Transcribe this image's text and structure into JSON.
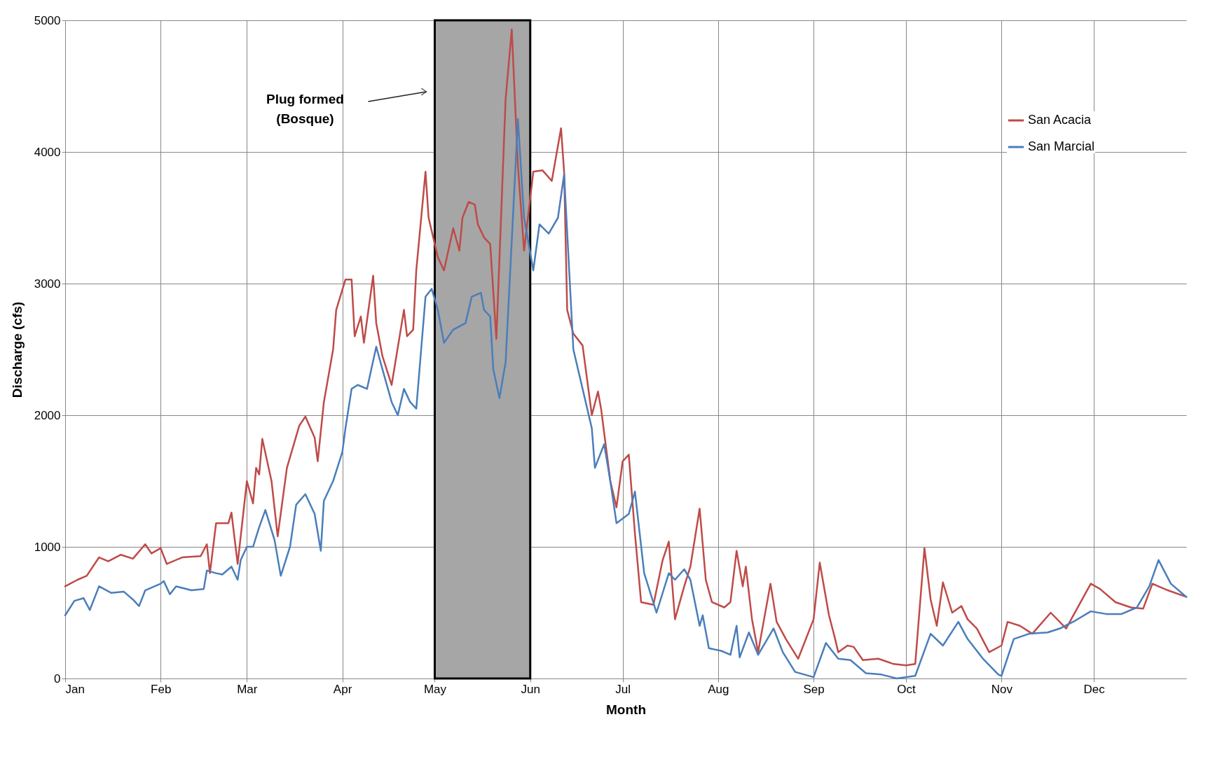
{
  "chart_data": {
    "type": "line",
    "xlabel": "Month",
    "ylabel": "Discharge (cfs)",
    "xlim": [
      "--01-01",
      "--12-31"
    ],
    "xticks": [
      {
        "value": "--01-01",
        "label": "Jan"
      },
      {
        "value": "--02-01",
        "label": "Feb"
      },
      {
        "value": "--03-01",
        "label": "Mar"
      },
      {
        "value": "--04-01",
        "label": "Apr"
      },
      {
        "value": "--05-01",
        "label": "May"
      },
      {
        "value": "--06-01",
        "label": "Jun"
      },
      {
        "value": "--07-01",
        "label": "Jul"
      },
      {
        "value": "--08-01",
        "label": "Aug"
      },
      {
        "value": "--09-01",
        "label": "Sep"
      },
      {
        "value": "--10-01",
        "label": "Oct"
      },
      {
        "value": "--11-01",
        "label": "Nov"
      },
      {
        "value": "--12-01",
        "label": "Dec"
      }
    ],
    "ylim": [
      0,
      5000
    ],
    "yticks": [
      0,
      1000,
      2000,
      3000,
      4000,
      5000
    ],
    "grid": true,
    "legend": "top right",
    "marker": "none",
    "line_style": "solid",
    "bands": [
      {
        "axis": "x",
        "from": "--05-01",
        "to": "--06-01",
        "color": "#a6a6a6"
      }
    ],
    "annotations": [
      "Plug formed\n(Bosque)"
    ],
    "series": [
      {
        "name": "San Acacia",
        "color": "#be4b48",
        "x": [
          "--01-01",
          "--01-05",
          "--01-08",
          "--01-12",
          "--01-15",
          "--01-19",
          "--01-23",
          "--01-27",
          "--01-29",
          "--02-01",
          "--02-03",
          "--02-08",
          "--02-14",
          "--02-16",
          "--02-17",
          "--02-19",
          "--02-23",
          "--02-24",
          "--02-26",
          "--03-01",
          "--03-03",
          "--03-04",
          "--03-05",
          "--03-06",
          "--03-09",
          "--03-11",
          "--03-14",
          "--03-18",
          "--03-20",
          "--03-23",
          "--03-24",
          "--03-26",
          "--03-29",
          "--03-30",
          "--04-02",
          "--04-04",
          "--04-05",
          "--04-07",
          "--04-08",
          "--04-11",
          "--04-12",
          "--04-14",
          "--04-17",
          "--04-21",
          "--04-22",
          "--04-24",
          "--04-25",
          "--04-28",
          "--04-29",
          "--05-02",
          "--05-04",
          "--05-07",
          "--05-09",
          "--05-10",
          "--05-12",
          "--05-14",
          "--05-15",
          "--05-17",
          "--05-19",
          "--05-21",
          "--05-24",
          "--05-26",
          "--05-28",
          "--05-30",
          "--06-02",
          "--06-05",
          "--06-08",
          "--06-11",
          "--06-12",
          "--06-13",
          "--06-15",
          "--06-18",
          "--06-21",
          "--06-23",
          "--06-24",
          "--06-27",
          "--06-29",
          "--07-01",
          "--07-03",
          "--07-05",
          "--07-07",
          "--07-11",
          "--07-14",
          "--07-16",
          "--07-18",
          "--07-21",
          "--07-23",
          "--07-26",
          "--07-28",
          "--07-30",
          "--08-03",
          "--08-05",
          "--08-07",
          "--08-09",
          "--08-10",
          "--08-12",
          "--08-14",
          "--08-18",
          "--08-20",
          "--08-23",
          "--08-27",
          "--09-01",
          "--09-03",
          "--09-06",
          "--09-08",
          "--09-09",
          "--09-12",
          "--09-14",
          "--09-17",
          "--09-22",
          "--09-27",
          "--10-01",
          "--10-04",
          "--10-07",
          "--10-09",
          "--10-11",
          "--10-13",
          "--10-16",
          "--10-19",
          "--10-21",
          "--10-24",
          "--10-28",
          "--11-01",
          "--11-03",
          "--11-07",
          "--11-11",
          "--11-17",
          "--11-22",
          "--11-26",
          "--11-30",
          "--12-03",
          "--12-08",
          "--12-13",
          "--12-17",
          "--12-20",
          "--12-25",
          "--12-31"
        ],
        "values": [
          700,
          750,
          780,
          920,
          890,
          940,
          910,
          1020,
          950,
          990,
          870,
          920,
          930,
          1020,
          800,
          1180,
          1180,
          1260,
          870,
          1500,
          1330,
          1600,
          1550,
          1820,
          1500,
          1080,
          1600,
          1920,
          1990,
          1830,
          1650,
          2100,
          2500,
          2800,
          3030,
          3030,
          2600,
          2750,
          2550,
          3060,
          2700,
          2450,
          2230,
          2800,
          2600,
          2650,
          3100,
          3850,
          3500,
          3200,
          3100,
          3420,
          3250,
          3500,
          3620,
          3600,
          3450,
          3350,
          3300,
          2580,
          4400,
          4930,
          3900,
          3250,
          3850,
          3860,
          3780,
          4180,
          3850,
          2800,
          2620,
          2530,
          2000,
          2180,
          2050,
          1500,
          1300,
          1650,
          1700,
          1100,
          580,
          560,
          900,
          1040,
          450,
          700,
          850,
          1290,
          750,
          580,
          540,
          580,
          970,
          700,
          850,
          450,
          200,
          720,
          430,
          300,
          150,
          450,
          880,
          480,
          300,
          200,
          250,
          240,
          140,
          150,
          110,
          100,
          110,
          990,
          600,
          400,
          730,
          500,
          550,
          450,
          380,
          200,
          250,
          430,
          400,
          340,
          500,
          380,
          550,
          720,
          680,
          580,
          540,
          530,
          720,
          670,
          620
        ]
      },
      {
        "name": "San Marcial",
        "color": "#4a7ebb",
        "x": [
          "--01-01",
          "--01-04",
          "--01-07",
          "--01-09",
          "--01-12",
          "--01-16",
          "--01-20",
          "--01-23",
          "--01-25",
          "--01-27",
          "--02-01",
          "--02-02",
          "--02-04",
          "--02-06",
          "--02-11",
          "--02-15",
          "--02-16",
          "--02-19",
          "--02-21",
          "--02-24",
          "--02-26",
          "--02-27",
          "--03-01",
          "--03-03",
          "--03-05",
          "--03-07",
          "--03-10",
          "--03-12",
          "--03-15",
          "--03-17",
          "--03-20",
          "--03-23",
          "--03-25",
          "--03-26",
          "--03-29",
          "--04-01",
          "--04-02",
          "--04-04",
          "--04-06",
          "--04-09",
          "--04-12",
          "--04-14",
          "--04-17",
          "--04-19",
          "--04-21",
          "--04-23",
          "--04-25",
          "--04-28",
          "--04-30",
          "--05-02",
          "--05-04",
          "--05-07",
          "--05-11",
          "--05-13",
          "--05-16",
          "--05-17",
          "--05-19",
          "--05-20",
          "--05-22",
          "--05-24",
          "--05-28",
          "--05-30",
          "--06-02",
          "--06-04",
          "--06-07",
          "--06-10",
          "--06-12",
          "--06-15",
          "--06-18",
          "--06-21",
          "--06-22",
          "--06-25",
          "--06-27",
          "--06-29",
          "--07-03",
          "--07-05",
          "--07-08",
          "--07-12",
          "--07-16",
          "--07-18",
          "--07-21",
          "--07-23",
          "--07-26",
          "--07-27",
          "--07-29",
          "--08-02",
          "--08-05",
          "--08-07",
          "--08-08",
          "--08-11",
          "--08-14",
          "--08-19",
          "--08-22",
          "--08-26",
          "--09-01",
          "--09-05",
          "--09-09",
          "--09-13",
          "--09-18",
          "--09-23",
          "--09-28",
          "--10-04",
          "--10-09",
          "--10-13",
          "--10-18",
          "--10-21",
          "--10-26",
          "--10-31",
          "--11-01",
          "--11-05",
          "--11-10",
          "--11-16",
          "--11-20",
          "--11-25",
          "--11-30",
          "--12-05",
          "--12-10",
          "--12-15",
          "--12-19",
          "--12-22",
          "--12-26",
          "--12-31"
        ],
        "values": [
          480,
          590,
          610,
          520,
          700,
          650,
          660,
          600,
          550,
          670,
          720,
          740,
          640,
          700,
          670,
          680,
          820,
          800,
          790,
          850,
          750,
          900,
          1000,
          1000,
          1150,
          1280,
          1050,
          780,
          1000,
          1320,
          1400,
          1250,
          970,
          1350,
          1500,
          1720,
          1900,
          2200,
          2230,
          2200,
          2520,
          2350,
          2100,
          2000,
          2200,
          2100,
          2050,
          2900,
          2960,
          2800,
          2550,
          2650,
          2700,
          2900,
          2930,
          2800,
          2750,
          2350,
          2130,
          2400,
          4250,
          3500,
          3100,
          3450,
          3380,
          3500,
          3830,
          2500,
          2200,
          1900,
          1600,
          1780,
          1500,
          1180,
          1250,
          1420,
          800,
          500,
          800,
          750,
          830,
          750,
          400,
          480,
          230,
          210,
          180,
          400,
          160,
          350,
          180,
          380,
          200,
          50,
          10,
          270,
          150,
          140,
          40,
          30,
          0,
          20,
          340,
          250,
          430,
          300,
          150,
          30,
          20,
          300,
          340,
          350,
          380,
          440,
          510,
          490,
          490,
          540,
          700,
          900,
          720,
          620
        ]
      }
    ]
  }
}
